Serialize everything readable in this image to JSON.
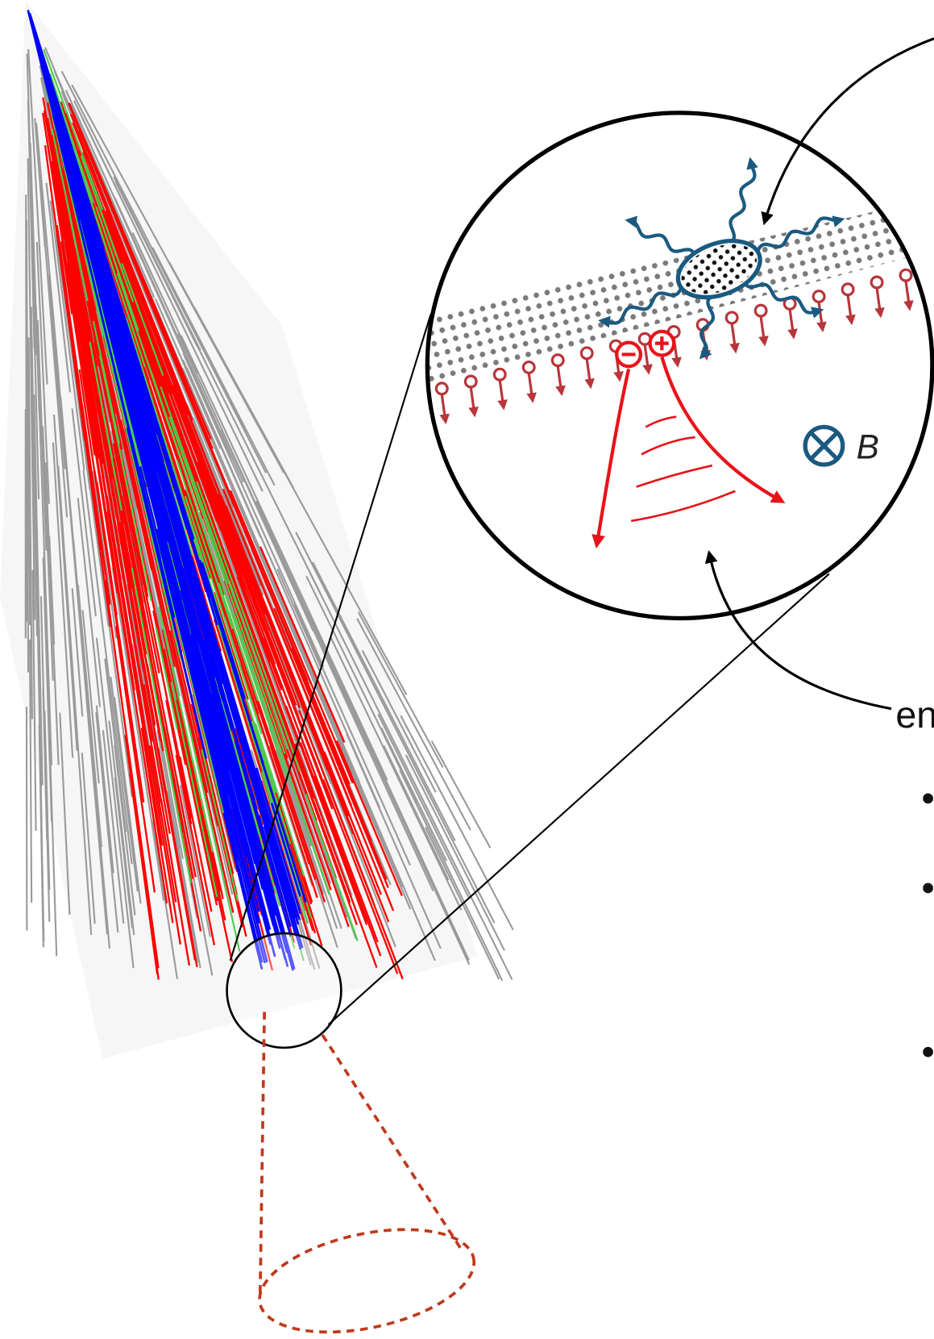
{
  "labels": {
    "magnetic_field": "B",
    "emission": "en"
  }
}
